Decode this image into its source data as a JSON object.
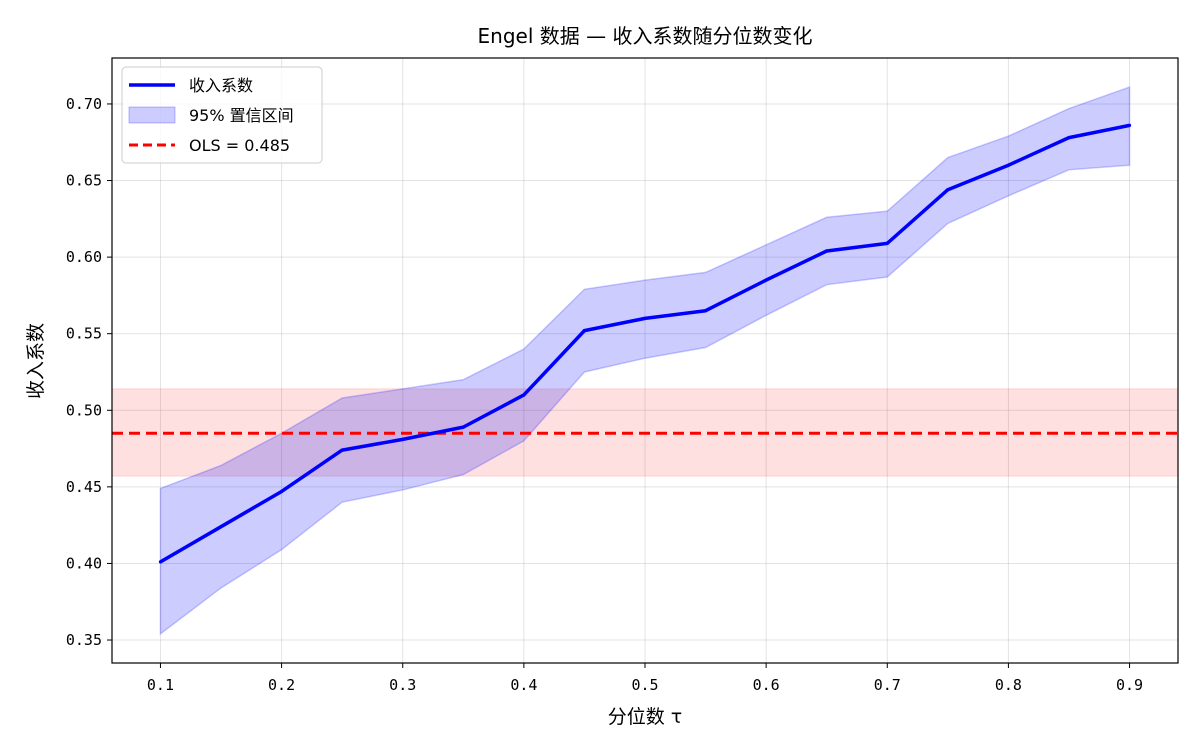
{
  "chart_data": {
    "type": "line",
    "title": "Engel 数据 — 收入系数随分位数变化",
    "xlabel": "分位数 τ",
    "ylabel": "收入系数",
    "xlim": [
      0.06,
      0.94
    ],
    "ylim": [
      0.335,
      0.73
    ],
    "xticks": [
      0.1,
      0.2,
      0.3,
      0.4,
      0.5,
      0.6,
      0.7,
      0.8,
      0.9
    ],
    "xtick_labels": [
      "0.1",
      "0.2",
      "0.3",
      "0.4",
      "0.5",
      "0.6",
      "0.7",
      "0.8",
      "0.9"
    ],
    "yticks": [
      0.35,
      0.4,
      0.45,
      0.5,
      0.55,
      0.6,
      0.65,
      0.7
    ],
    "ytick_labels": [
      "0.35",
      "0.40",
      "0.45",
      "0.50",
      "0.55",
      "0.60",
      "0.65",
      "0.70"
    ],
    "grid": true,
    "legend_position": "top-left",
    "x": [
      0.1,
      0.15,
      0.2,
      0.25,
      0.3,
      0.35,
      0.4,
      0.45,
      0.5,
      0.55,
      0.6,
      0.65,
      0.7,
      0.75,
      0.8,
      0.85,
      0.9
    ],
    "series": [
      {
        "name": "收入系数",
        "values": [
          0.401,
          0.424,
          0.447,
          0.474,
          0.481,
          0.489,
          0.51,
          0.552,
          0.56,
          0.565,
          0.585,
          0.604,
          0.609,
          0.644,
          0.66,
          0.678,
          0.686
        ],
        "color": "#0000ff"
      }
    ],
    "confidence_band": {
      "name": "95% 置信区间",
      "lower": [
        0.354,
        0.384,
        0.409,
        0.44,
        0.448,
        0.458,
        0.48,
        0.525,
        0.534,
        0.541,
        0.562,
        0.582,
        0.587,
        0.622,
        0.64,
        0.657,
        0.66
      ],
      "upper": [
        0.449,
        0.464,
        0.485,
        0.508,
        0.514,
        0.52,
        0.54,
        0.579,
        0.585,
        0.59,
        0.608,
        0.626,
        0.63,
        0.665,
        0.679,
        0.697,
        0.711
      ],
      "color": "#0000ff"
    },
    "ols": {
      "label": "OLS = 0.485",
      "value": 0.485,
      "band": [
        0.457,
        0.514
      ],
      "color": "#ff0000"
    }
  }
}
